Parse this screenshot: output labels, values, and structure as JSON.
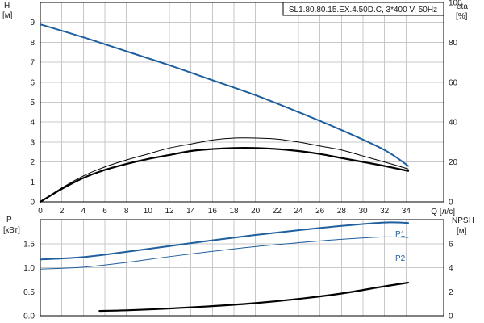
{
  "chart_data": [
    {
      "type": "line",
      "title": "SL1.80.80.15.EX.4.50D.C, 3*400 V, 50Hz",
      "xlabel": "Q [л/с]",
      "x_ticks": [
        0,
        2,
        4,
        6,
        8,
        10,
        12,
        14,
        16,
        18,
        20,
        22,
        24,
        26,
        28,
        30,
        32,
        34
      ],
      "xlim": [
        0,
        37.5
      ],
      "y_left": {
        "label_line1": "H",
        "label_line2": "[м]",
        "ylim": [
          0,
          10
        ],
        "ticks": [
          0,
          1,
          2,
          3,
          4,
          5,
          6,
          7,
          8,
          9
        ]
      },
      "y_right": {
        "label_line1": "eta",
        "label_line2": "[%]",
        "ylim": [
          0,
          100
        ],
        "ticks": [
          0,
          20,
          40,
          60,
          80,
          100
        ]
      },
      "grid": true,
      "series": [
        {
          "axis": "left",
          "color": "#1f5f9e",
          "width": 2,
          "x": [
            0,
            4,
            8,
            12,
            16,
            20,
            24,
            28,
            32,
            34.2
          ],
          "y": [
            8.9,
            8.25,
            7.55,
            6.85,
            6.1,
            5.35,
            4.5,
            3.6,
            2.6,
            1.8
          ]
        },
        {
          "axis": "right",
          "color": "#000000",
          "width": 1,
          "x": [
            0,
            2,
            4,
            6,
            8,
            10,
            12,
            14,
            16,
            18,
            20,
            22,
            24,
            26,
            28,
            30,
            32,
            34.2
          ],
          "y": [
            0,
            7,
            13,
            17.5,
            21,
            24,
            27,
            29,
            31,
            32,
            32,
            31.5,
            30,
            28,
            26,
            23,
            20,
            16.5
          ]
        },
        {
          "axis": "left",
          "color": "#000000",
          "width": 2.2,
          "x": [
            0,
            2,
            4,
            6,
            8,
            10,
            12,
            14,
            16,
            18,
            20,
            22,
            24,
            26,
            28,
            30,
            32,
            34.2
          ],
          "y": [
            0,
            0.65,
            1.2,
            1.6,
            1.9,
            2.15,
            2.35,
            2.55,
            2.65,
            2.7,
            2.7,
            2.65,
            2.55,
            2.4,
            2.2,
            2.0,
            1.8,
            1.55
          ]
        }
      ]
    },
    {
      "type": "line",
      "x_ticks": [
        0,
        2,
        4,
        6,
        8,
        10,
        12,
        14,
        16,
        18,
        20,
        22,
        24,
        26,
        28,
        30,
        32,
        34
      ],
      "xlim": [
        0,
        37.5
      ],
      "y_left": {
        "label_line1": "P",
        "label_line2": "[кВт]",
        "ylim": [
          0,
          2.0
        ],
        "ticks": [
          0.0,
          0.5,
          1.0,
          1.5
        ],
        "tick_labels": [
          "0.0",
          "0.5",
          "1.0",
          "1.5"
        ]
      },
      "y_right": {
        "label_line1": "NPSH",
        "label_line2": "[м]",
        "ylim": [
          0,
          8
        ],
        "ticks": [
          0,
          2,
          4,
          6
        ]
      },
      "grid": true,
      "series": [
        {
          "name": "P1",
          "axis": "left",
          "color": "#1f5f9e",
          "width": 2,
          "x": [
            0,
            4,
            8,
            12,
            16,
            20,
            24,
            28,
            32,
            34.2
          ],
          "y": [
            1.17,
            1.22,
            1.33,
            1.45,
            1.57,
            1.68,
            1.78,
            1.87,
            1.94,
            1.93
          ]
        },
        {
          "name": "P2",
          "axis": "left",
          "color": "#1f5f9e",
          "width": 1,
          "x": [
            0,
            4,
            8,
            12,
            16,
            20,
            24,
            28,
            32,
            34.2
          ],
          "y": [
            0.97,
            1.01,
            1.11,
            1.23,
            1.34,
            1.44,
            1.52,
            1.59,
            1.64,
            1.63
          ]
        },
        {
          "axis": "right",
          "color": "#000000",
          "width": 2.2,
          "x": [
            5.5,
            8,
            12,
            16,
            20,
            24,
            28,
            32,
            34.2
          ],
          "y": [
            0.4,
            0.45,
            0.6,
            0.8,
            1.05,
            1.4,
            1.85,
            2.45,
            2.75
          ]
        }
      ]
    }
  ]
}
